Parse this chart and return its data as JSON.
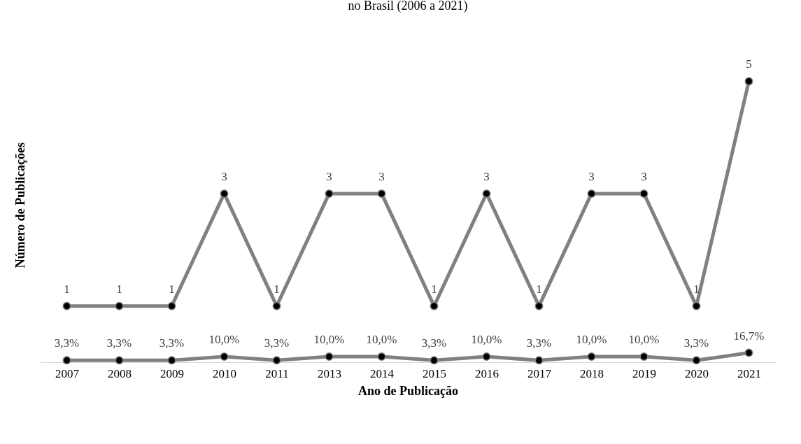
{
  "chart_data": {
    "type": "line",
    "title": "no Brasil (2006 a 2021)",
    "xlabel": "Ano de Publicação",
    "ylabel": "Número de Publicações",
    "categories": [
      "2007",
      "2008",
      "2009",
      "2010",
      "2011",
      "2013",
      "2014",
      "2015",
      "2016",
      "2017",
      "2018",
      "2019",
      "2020",
      "2021"
    ],
    "marker": "circle",
    "grid": false,
    "series": [
      {
        "color": "#808080",
        "values": [
          1,
          1,
          1,
          3,
          1,
          3,
          3,
          1,
          3,
          1,
          3,
          3,
          1,
          5
        ],
        "value_labels": [
          "1",
          "1",
          "1",
          "3",
          "1",
          "3",
          "3",
          "1",
          "3",
          "1",
          "3",
          "3",
          "1",
          "5"
        ]
      },
      {
        "color": "#808080",
        "values": [
          0.033,
          0.033,
          0.033,
          0.1,
          0.033,
          0.1,
          0.1,
          0.033,
          0.1,
          0.033,
          0.1,
          0.1,
          0.033,
          0.167
        ],
        "value_labels": [
          "3,3%",
          "3,3%",
          "3,3%",
          "10,0%",
          "3,3%",
          "10,0%",
          "10,0%",
          "3,3%",
          "10,0%",
          "3,3%",
          "10,0%",
          "10,0%",
          "3,3%",
          "16,7%"
        ]
      }
    ]
  }
}
